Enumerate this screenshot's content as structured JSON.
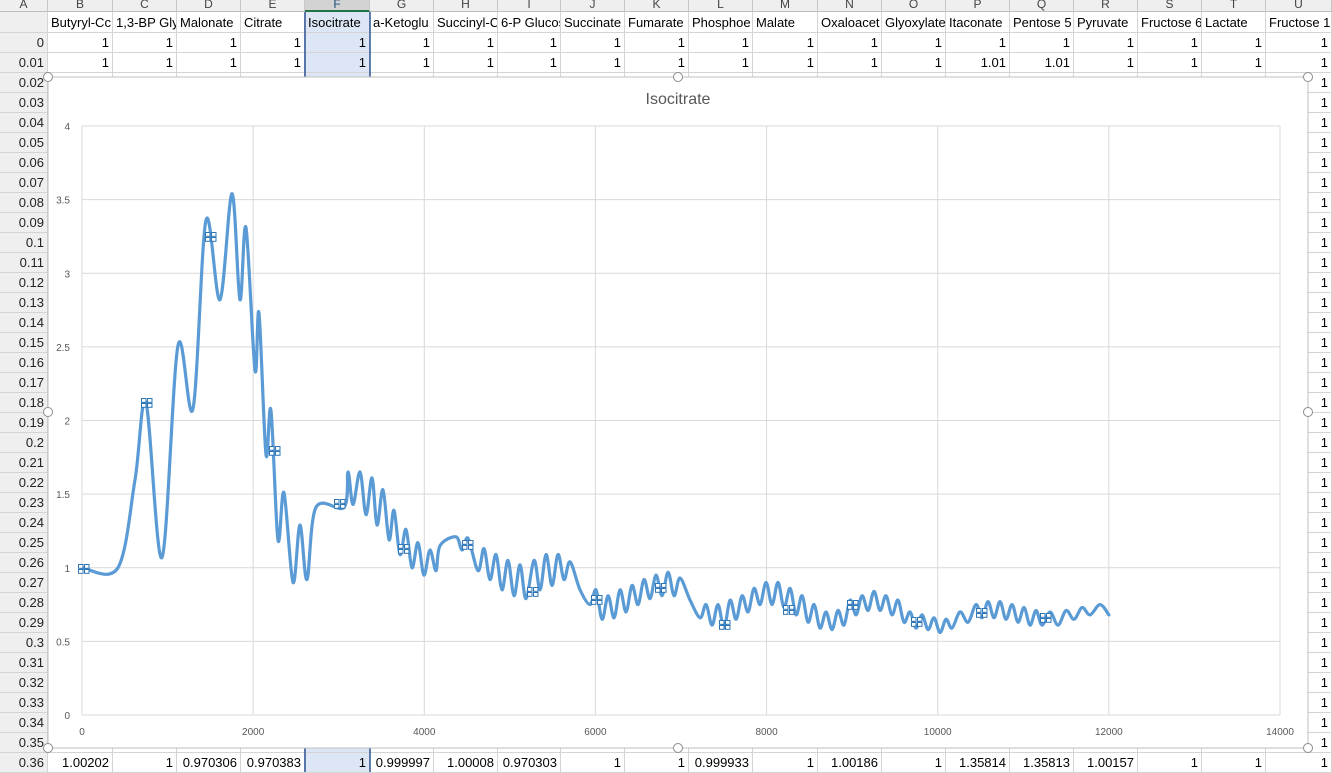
{
  "sheet": {
    "columns": [
      "A",
      "B",
      "C",
      "D",
      "E",
      "F",
      "G",
      "H",
      "I",
      "J",
      "K",
      "L",
      "M",
      "N",
      "O",
      "P",
      "Q",
      "R",
      "S",
      "T",
      "U"
    ],
    "header": [
      "Butyryl-Cc",
      "1,3-BP Gly",
      "Malonate",
      "Citrate",
      "Isocitrate",
      "a-Ketoglu",
      "Succinyl-C",
      "6-P Glucos",
      "Succinate",
      "Fumarate",
      "Phosphoe",
      "Malate",
      "Oxaloacet",
      "Glyoxylate",
      "Itaconate",
      "Pentose 5",
      "Pyruvate",
      "Fructose 6",
      "Lactate",
      "Fructose 1"
    ],
    "rows": [
      {
        "a": "0",
        "cells": [
          "1",
          "1",
          "1",
          "1",
          "1",
          "1",
          "1",
          "1",
          "1",
          "1",
          "1",
          "1",
          "1",
          "1",
          "1",
          "1",
          "1",
          "1",
          "1",
          "1"
        ]
      },
      {
        "a": "0.01",
        "cells": [
          "1",
          "1",
          "1",
          "1",
          "1",
          "1",
          "1",
          "1",
          "1",
          "1",
          "1",
          "1",
          "1",
          "1",
          "1.01",
          "1.01",
          "1",
          "1",
          "1",
          "1"
        ]
      },
      {
        "a": "0.02",
        "u": "1"
      },
      {
        "a": "0.03",
        "u": "1"
      },
      {
        "a": "0.04",
        "u": "1"
      },
      {
        "a": "0.05",
        "u": "1"
      },
      {
        "a": "0.06",
        "u": "1"
      },
      {
        "a": "0.07",
        "u": "1"
      },
      {
        "a": "0.08",
        "u": "1"
      },
      {
        "a": "0.09",
        "u": "1"
      },
      {
        "a": "0.1",
        "u": "1"
      },
      {
        "a": "0.11",
        "u": "1"
      },
      {
        "a": "0.12",
        "u": "1"
      },
      {
        "a": "0.13",
        "u": "1"
      },
      {
        "a": "0.14",
        "u": "1"
      },
      {
        "a": "0.15",
        "u": "1"
      },
      {
        "a": "0.16",
        "u": "1"
      },
      {
        "a": "0.17",
        "u": "1"
      },
      {
        "a": "0.18",
        "u": "1"
      },
      {
        "a": "0.19",
        "u": "1"
      },
      {
        "a": "0.2",
        "u": "1"
      },
      {
        "a": "0.21",
        "u": "1"
      },
      {
        "a": "0.22",
        "u": "1"
      },
      {
        "a": "0.23",
        "u": "1"
      },
      {
        "a": "0.24",
        "u": "1"
      },
      {
        "a": "0.25",
        "u": "1"
      },
      {
        "a": "0.26",
        "u": "1"
      },
      {
        "a": "0.27",
        "u": "1"
      },
      {
        "a": "0.28",
        "u": "1"
      },
      {
        "a": "0.29",
        "u": "1"
      },
      {
        "a": "0.3",
        "u": "1"
      },
      {
        "a": "0.31",
        "u": "1"
      },
      {
        "a": "0.32",
        "u": "1"
      },
      {
        "a": "0.33",
        "u": "1"
      },
      {
        "a": "0.34",
        "u": "1"
      },
      {
        "a": "0.35",
        "u": "1"
      },
      {
        "a": "0.36",
        "cells": [
          "1.00202",
          "1",
          "0.970306",
          "0.970383",
          "1",
          "0.999997",
          "1.00008",
          "0.970303",
          "1",
          "1",
          "0.999933",
          "1",
          "1.00186",
          "1",
          "1.35814",
          "1.35813",
          "1.00157",
          "1",
          "1",
          "1"
        ]
      }
    ]
  },
  "chart_data": {
    "type": "line",
    "title": "Isocitrate",
    "xlim": [
      0,
      14000
    ],
    "xticks": [
      0,
      2000,
      4000,
      6000,
      8000,
      10000,
      12000,
      14000
    ],
    "ylim": [
      0,
      4
    ],
    "yticks": [
      0,
      0.5,
      1,
      1.5,
      2,
      2.5,
      3,
      3.5,
      4
    ],
    "grid": true,
    "series": [
      {
        "color": "#5b9bd5",
        "x": [
          0,
          420,
          620,
          748,
          935,
          1122,
          1297,
          1449,
          1612,
          1753,
          1846,
          1916,
          2022,
          2068,
          2150,
          2208,
          2290,
          2360,
          2466,
          2547,
          2629,
          2734,
          3062,
          3109,
          3167,
          3249,
          3319,
          3389,
          3448,
          3517,
          3588,
          3646,
          3716,
          3786,
          3856,
          3926,
          3996,
          4066,
          4137,
          4184,
          4370,
          4441,
          4511,
          4628,
          4698,
          4768,
          4838,
          4908,
          4978,
          5049,
          5119,
          5189,
          5283,
          5353,
          5423,
          5493,
          5563,
          5633,
          5704,
          5820,
          5937,
          6007,
          6078,
          6148,
          6218,
          6288,
          6358,
          6428,
          6498,
          6568,
          6638,
          6708,
          6778,
          6849,
          6919,
          6989,
          7106,
          7223,
          7293,
          7363,
          7433,
          7503,
          7574,
          7644,
          7714,
          7784,
          7854,
          7924,
          7994,
          8064,
          8134,
          8204,
          8275,
          8345,
          8415,
          8485,
          8555,
          8625,
          8695,
          8765,
          8835,
          8905,
          8976,
          9046,
          9116,
          9186,
          9256,
          9326,
          9396,
          9466,
          9536,
          9606,
          9677,
          9747,
          9817,
          9887,
          9957,
          10027,
          10097,
          10167,
          10261,
          10354,
          10448,
          10518,
          10588,
          10658,
          10728,
          10798,
          10869,
          10939,
          11009,
          11079,
          11149,
          11219,
          11313,
          11406,
          11500,
          11593,
          11687,
          11780,
          11897,
          12000
        ],
        "values": [
          1.0,
          1.0,
          1.6,
          2.12,
          1.07,
          2.51,
          2.08,
          3.36,
          2.82,
          3.54,
          2.82,
          3.31,
          2.34,
          2.73,
          1.77,
          2.07,
          1.19,
          1.51,
          0.9,
          1.29,
          0.92,
          1.41,
          1.41,
          1.65,
          1.43,
          1.65,
          1.36,
          1.61,
          1.29,
          1.53,
          1.19,
          1.39,
          1.09,
          1.26,
          1.0,
          1.17,
          0.95,
          1.12,
          0.98,
          1.15,
          1.21,
          1.12,
          1.2,
          0.98,
          1.13,
          0.92,
          1.09,
          0.85,
          1.05,
          0.81,
          1.02,
          0.79,
          1.05,
          0.85,
          1.09,
          0.88,
          1.09,
          0.92,
          1.04,
          0.85,
          0.75,
          0.85,
          0.65,
          0.81,
          0.66,
          0.85,
          0.7,
          0.88,
          0.75,
          0.92,
          0.79,
          0.95,
          0.81,
          0.97,
          0.81,
          0.93,
          0.78,
          0.66,
          0.75,
          0.61,
          0.75,
          0.59,
          0.78,
          0.65,
          0.81,
          0.7,
          0.86,
          0.75,
          0.9,
          0.75,
          0.9,
          0.73,
          0.86,
          0.68,
          0.81,
          0.63,
          0.75,
          0.59,
          0.7,
          0.58,
          0.71,
          0.61,
          0.78,
          0.68,
          0.81,
          0.71,
          0.84,
          0.71,
          0.81,
          0.68,
          0.78,
          0.63,
          0.7,
          0.59,
          0.68,
          0.58,
          0.66,
          0.56,
          0.65,
          0.59,
          0.7,
          0.63,
          0.75,
          0.66,
          0.77,
          0.66,
          0.77,
          0.65,
          0.75,
          0.63,
          0.73,
          0.61,
          0.71,
          0.61,
          0.7,
          0.61,
          0.71,
          0.65,
          0.73,
          0.68,
          0.75,
          0.68
        ]
      }
    ]
  }
}
